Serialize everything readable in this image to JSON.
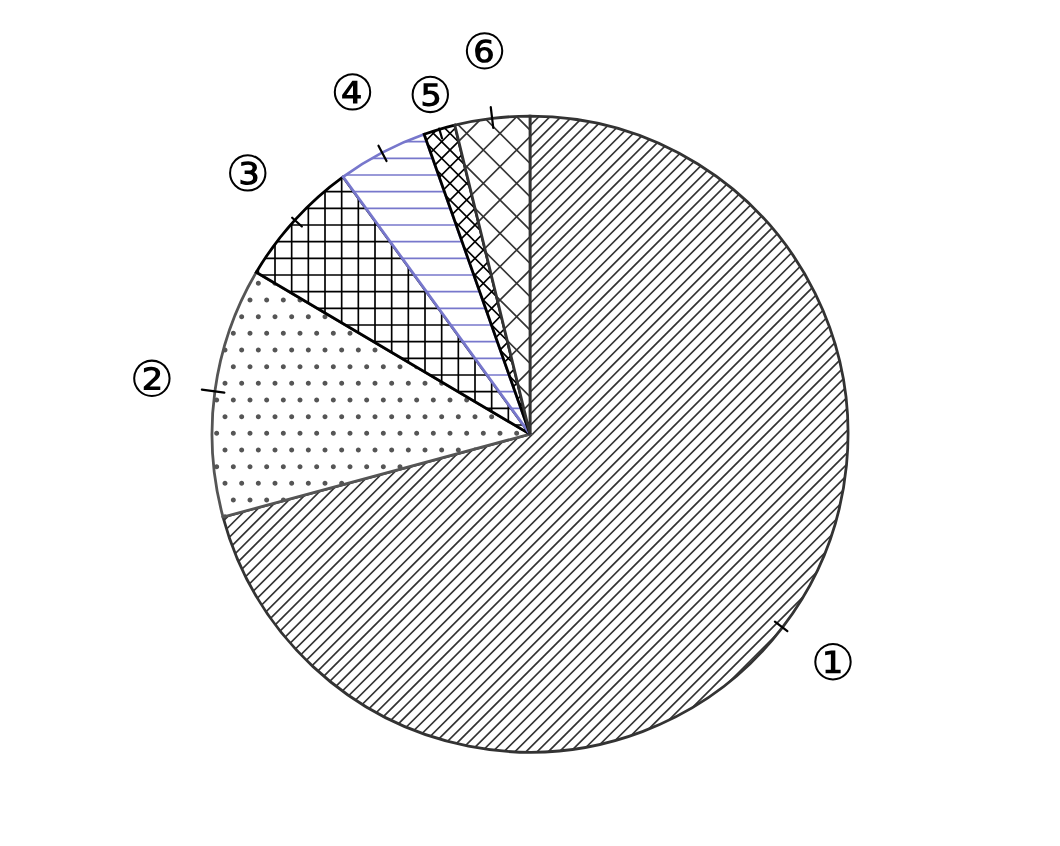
{
  "chart_data": {
    "type": "pie",
    "categories": [
      "①",
      "②",
      "③",
      "④",
      "⑤",
      "⑥"
    ],
    "values": [
      70.8,
      12.7,
      6.5,
      4.6,
      1.6,
      3.8
    ],
    "colors": [
      "#333333",
      "#555555",
      "#000000",
      "#7777cc",
      "#000000",
      "#333333"
    ],
    "legend": false
  }
}
